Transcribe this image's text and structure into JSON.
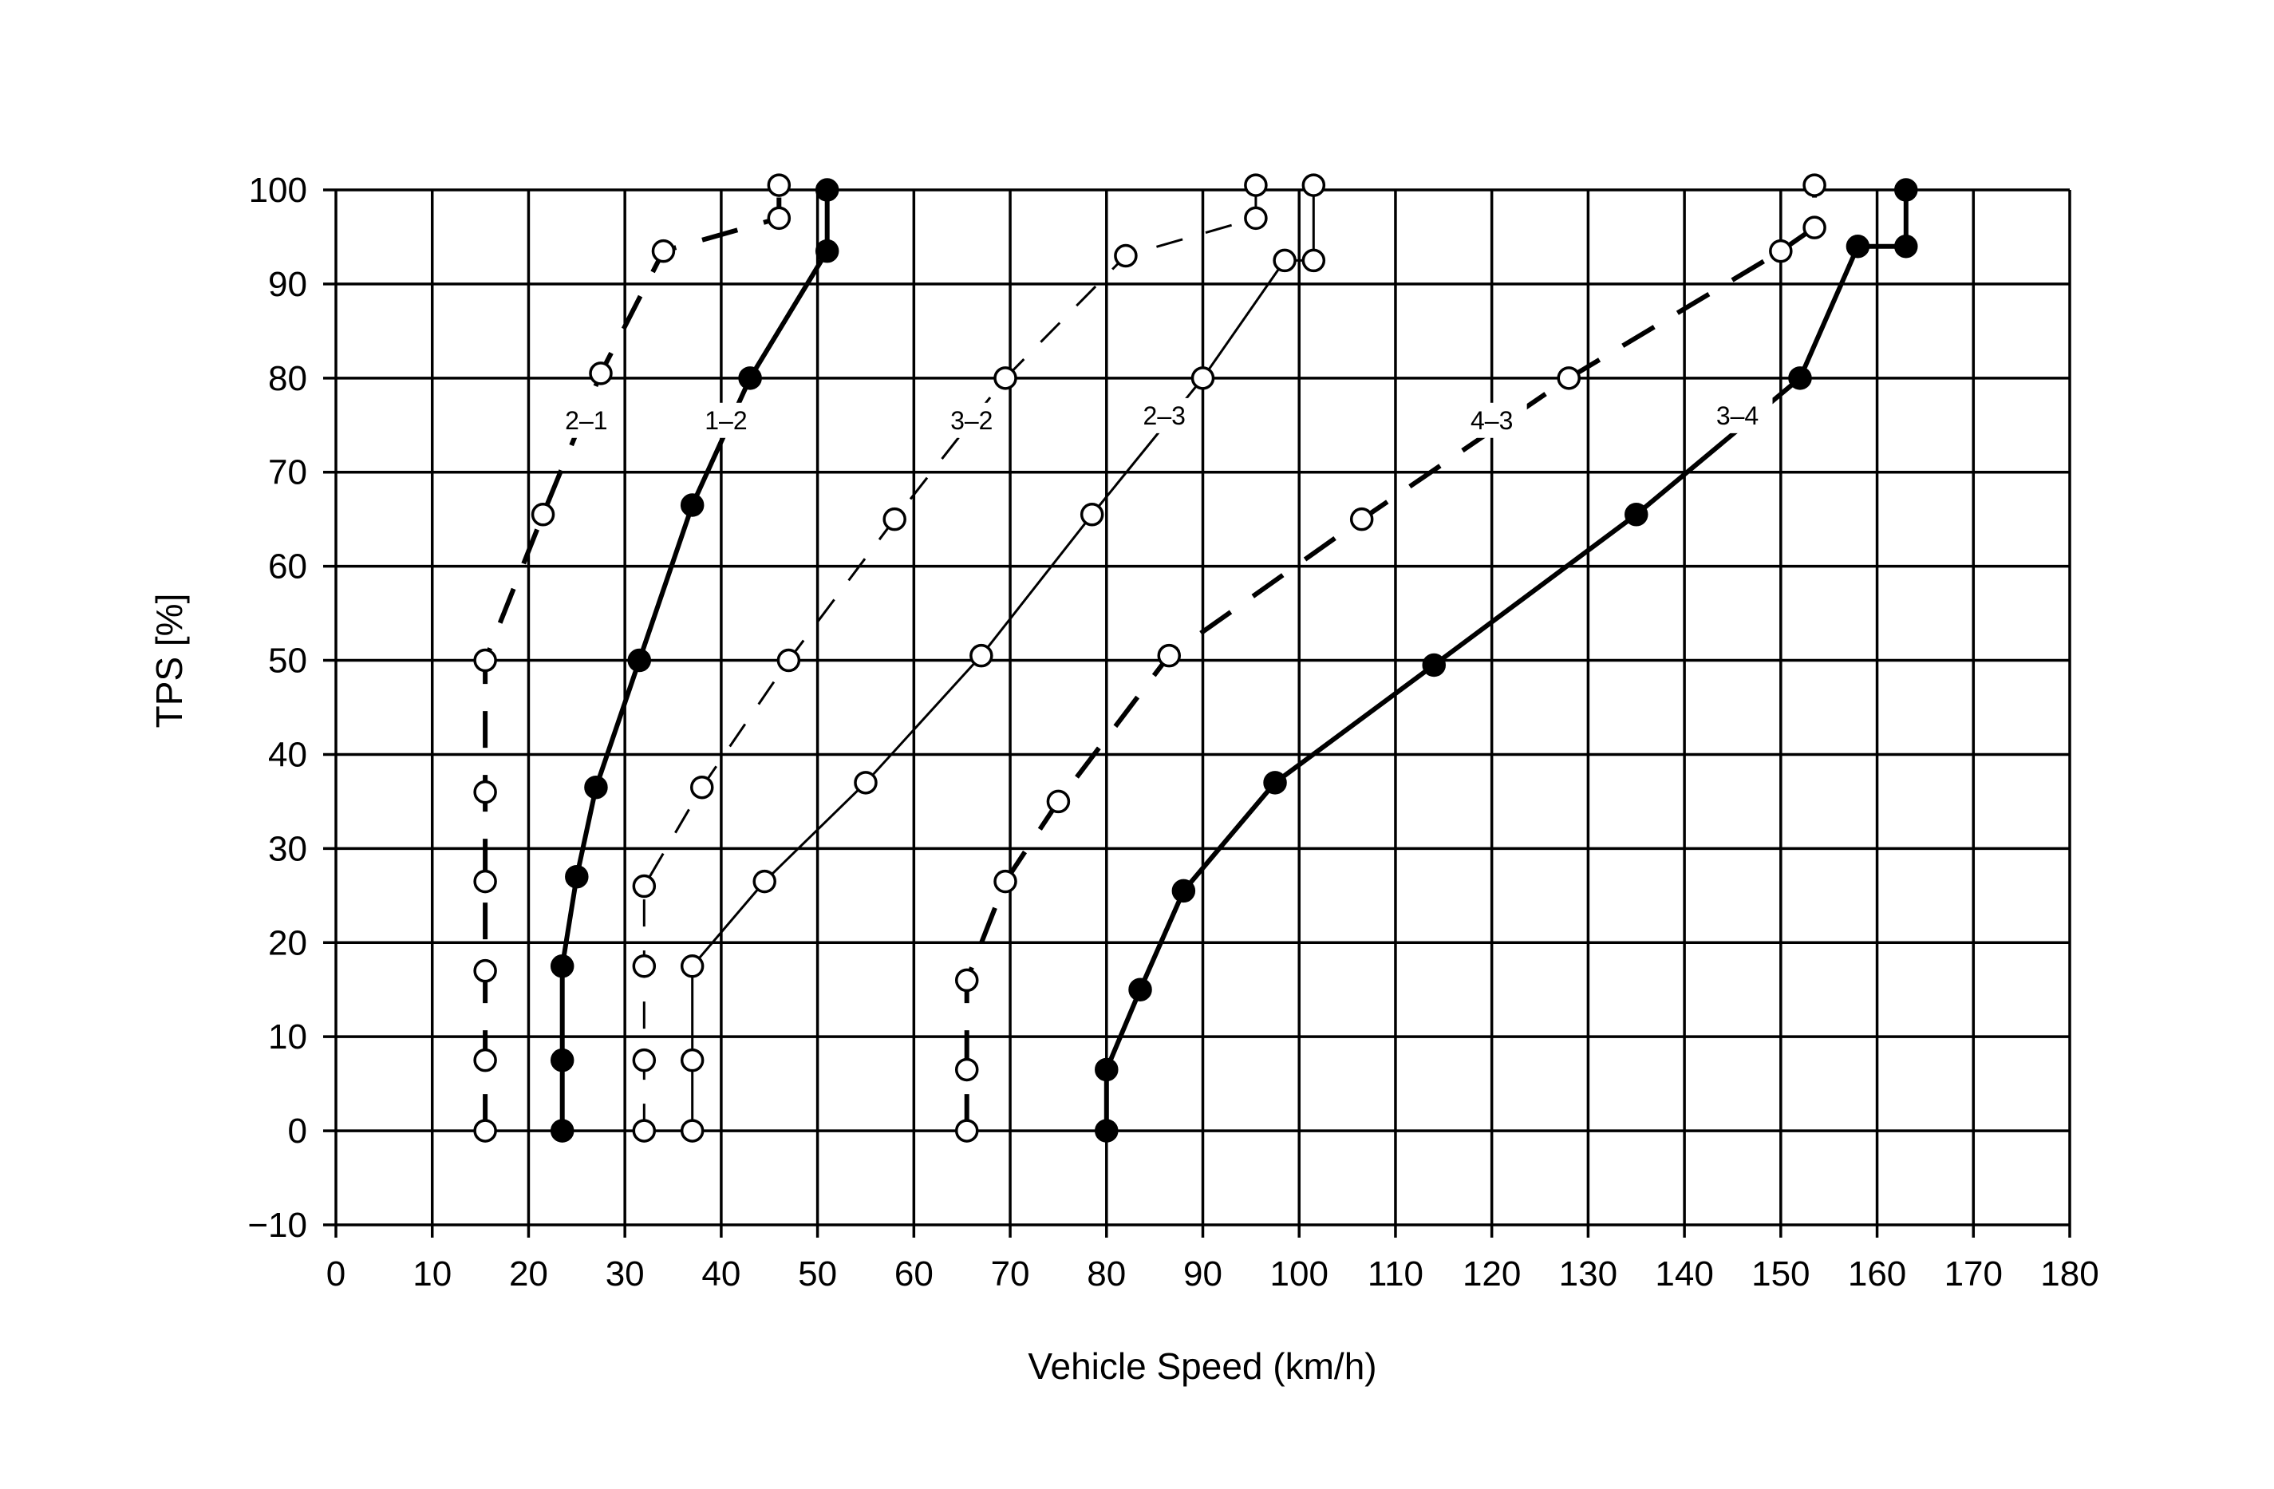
{
  "chart_data": {
    "type": "line",
    "title": "",
    "xlabel": "Vehicle Speed (km/h)",
    "ylabel": "TPS [%]",
    "xlim": [
      0,
      180
    ],
    "ylim": [
      -10,
      100
    ],
    "x_ticks": [
      0,
      10,
      20,
      30,
      40,
      50,
      60,
      70,
      80,
      90,
      100,
      110,
      120,
      130,
      140,
      150,
      160,
      170,
      180
    ],
    "y_ticks": [
      -10,
      0,
      10,
      20,
      30,
      40,
      50,
      60,
      70,
      80,
      90,
      100
    ],
    "grid": true,
    "legend": "none",
    "series": [
      {
        "name": "2-1",
        "style": "dashed",
        "marker": "open",
        "weight": "heavy",
        "label_pos": [
          26,
          75
        ],
        "points": [
          [
            15.5,
            0
          ],
          [
            15.5,
            7.5
          ],
          [
            15.5,
            17
          ],
          [
            15.5,
            26.5
          ],
          [
            15.5,
            36
          ],
          [
            15.5,
            50
          ],
          [
            21.5,
            65.5
          ],
          [
            27.5,
            80.5
          ],
          [
            34,
            93.5
          ],
          [
            46,
            97
          ],
          [
            46,
            100.5
          ]
        ]
      },
      {
        "name": "1-2",
        "style": "solid",
        "marker": "filled",
        "weight": "heavy",
        "label_pos": [
          40.5,
          75
        ],
        "points": [
          [
            23.5,
            0
          ],
          [
            23.5,
            7.5
          ],
          [
            23.5,
            17.5
          ],
          [
            25,
            27
          ],
          [
            27,
            36.5
          ],
          [
            31.5,
            50
          ],
          [
            37,
            66.5
          ],
          [
            43,
            80
          ],
          [
            51,
            93.5
          ],
          [
            51,
            100
          ]
        ]
      },
      {
        "name": "3-2",
        "style": "dashed",
        "marker": "open",
        "weight": "light",
        "label_pos": [
          66,
          75
        ],
        "points": [
          [
            32,
            0
          ],
          [
            32,
            7.5
          ],
          [
            32,
            17.5
          ],
          [
            32,
            26
          ],
          [
            38,
            36.5
          ],
          [
            47,
            50
          ],
          [
            58,
            65
          ],
          [
            69.5,
            80
          ],
          [
            82,
            93
          ],
          [
            95.5,
            97
          ],
          [
            95.5,
            100.5
          ]
        ]
      },
      {
        "name": "2-3",
        "style": "solid",
        "marker": "open",
        "weight": "light",
        "label_pos": [
          86,
          75.5
        ],
        "points": [
          [
            37,
            0
          ],
          [
            37,
            7.5
          ],
          [
            37,
            17.5
          ],
          [
            44.5,
            26.5
          ],
          [
            55,
            37
          ],
          [
            67,
            50.5
          ],
          [
            78.5,
            65.5
          ],
          [
            90,
            80
          ],
          [
            98.5,
            92.5
          ],
          [
            101.5,
            92.5
          ],
          [
            101.5,
            100.5
          ]
        ]
      },
      {
        "name": "4-3",
        "style": "dashed",
        "marker": "open",
        "weight": "heavy",
        "label_pos": [
          120,
          75
        ],
        "points": [
          [
            65.5,
            0
          ],
          [
            65.5,
            6.5
          ],
          [
            65.5,
            16
          ],
          [
            69.5,
            26.5
          ],
          [
            75,
            35
          ],
          [
            86.5,
            50.5
          ],
          [
            106.5,
            65
          ],
          [
            128,
            80
          ],
          [
            150,
            93.5
          ],
          [
            153.5,
            96
          ],
          [
            153.5,
            100.5
          ]
        ]
      },
      {
        "name": "3-4",
        "style": "solid",
        "marker": "filled",
        "weight": "heavy",
        "label_pos": [
          145.5,
          75.5
        ],
        "points": [
          [
            80,
            0
          ],
          [
            80,
            6.5
          ],
          [
            83.5,
            15
          ],
          [
            88,
            25.5
          ],
          [
            97.5,
            37
          ],
          [
            114,
            49.5
          ],
          [
            135,
            65.5
          ],
          [
            152,
            80
          ],
          [
            158,
            94
          ],
          [
            163,
            94
          ],
          [
            163,
            100
          ]
        ]
      }
    ]
  }
}
